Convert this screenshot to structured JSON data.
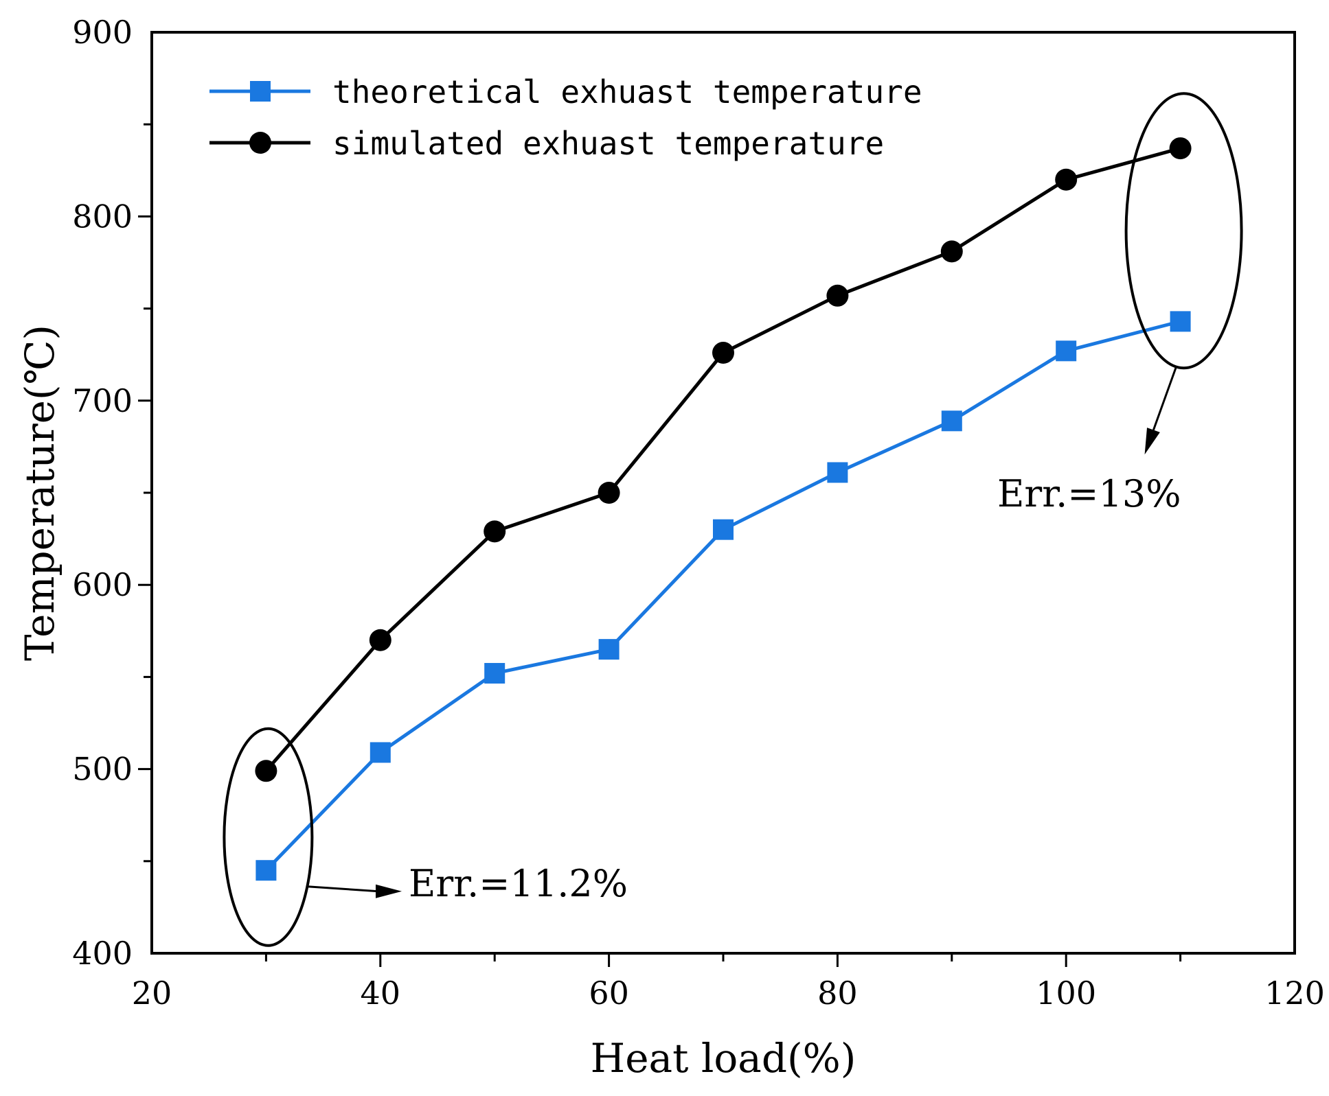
{
  "chart_data": {
    "type": "line",
    "title": "",
    "xlabel": "Heat load(%)",
    "ylabel": "Temperature(℃)",
    "xlim": [
      20,
      120
    ],
    "ylim": [
      400,
      900
    ],
    "xticks": [
      20,
      40,
      60,
      80,
      100,
      120
    ],
    "yticks": [
      400,
      500,
      600,
      700,
      800,
      900
    ],
    "grid": false,
    "legend_position": "top-left",
    "x": [
      30,
      40,
      50,
      60,
      70,
      80,
      90,
      100,
      110
    ],
    "series": [
      {
        "name": "theoretical exhuast temperature",
        "color": "#1a78e0",
        "marker": "square",
        "values": [
          445,
          509,
          552,
          565,
          630,
          661,
          689,
          727,
          743
        ]
      },
      {
        "name": "simulated exhuast temperature",
        "color": "#000000",
        "marker": "circle",
        "values": [
          499,
          570,
          629,
          650,
          726,
          757,
          781,
          820,
          837
        ]
      }
    ],
    "annotations": [
      {
        "text": "Err.=11.2%",
        "x_value": 30,
        "note": "circled low-load points"
      },
      {
        "text": "Err.=13%",
        "x_value": 110,
        "note": "circled high-load points"
      }
    ]
  }
}
